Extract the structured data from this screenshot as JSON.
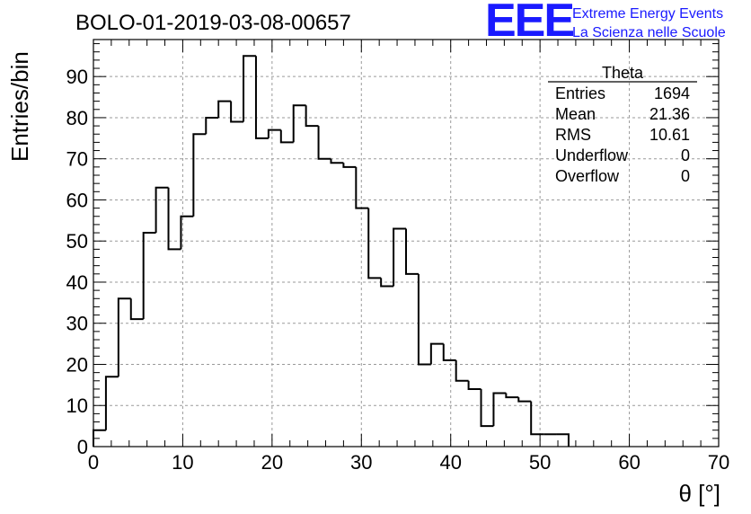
{
  "header": {
    "run_title": "BOLO-01-2019-03-08-00657",
    "logo_letters": "EEE",
    "logo_line1": "Extreme Energy Events",
    "logo_line2": "La Scienza nelle Scuole"
  },
  "stats_box": {
    "name": "Theta",
    "rows": [
      {
        "label": "Entries",
        "value": "1694"
      },
      {
        "label": "Mean",
        "value": "21.36"
      },
      {
        "label": "RMS",
        "value": "10.61"
      },
      {
        "label": "Underflow",
        "value": "0"
      },
      {
        "label": "Overflow",
        "value": "0"
      }
    ]
  },
  "chart_data": {
    "type": "bar",
    "style": "step-histogram",
    "title": "BOLO-01-2019-03-08-00657",
    "xlabel": "θ [°]",
    "ylabel": "Entries/bin",
    "xlim": [
      0,
      70
    ],
    "ylim": [
      0,
      99
    ],
    "grid": true,
    "bin_width": 1.4,
    "bin_start": 0,
    "values": [
      4,
      17,
      36,
      31,
      52,
      63,
      48,
      56,
      76,
      80,
      84,
      79,
      95,
      75,
      77,
      74,
      83,
      78,
      70,
      69,
      68,
      58,
      41,
      39,
      53,
      42,
      20,
      25,
      21,
      16,
      14,
      5,
      13,
      12,
      11,
      3,
      3,
      3
    ],
    "x_ticks": [
      "0",
      "10",
      "20",
      "30",
      "40",
      "50",
      "60",
      "70"
    ],
    "y_ticks": [
      "0",
      "10",
      "20",
      "30",
      "40",
      "50",
      "60",
      "70",
      "80",
      "90"
    ],
    "line_color": "#000000"
  }
}
